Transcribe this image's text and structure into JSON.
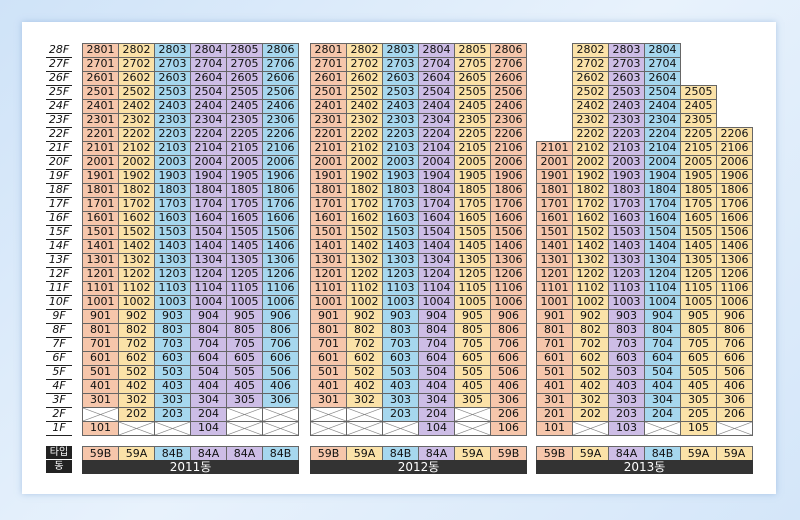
{
  "colors": {
    "59B": "#f6c6ab",
    "59A": "#fbe2a8",
    "84B": "#a6d7ee",
    "84A": "#cdbde6"
  },
  "legend": {
    "type_header": "타입",
    "building_header": "동"
  },
  "buildings": [
    {
      "name": "2011동",
      "lines": [
        {
          "line": "01",
          "type": "59B",
          "min": 1,
          "max": 28,
          "skip": [
            2
          ]
        },
        {
          "line": "02",
          "type": "59A",
          "min": 2,
          "max": 28,
          "skip": []
        },
        {
          "line": "03",
          "type": "84B",
          "min": 2,
          "max": 28,
          "skip": []
        },
        {
          "line": "04",
          "type": "84A",
          "min": 1,
          "max": 28,
          "skip": []
        },
        {
          "line": "05",
          "type": "84A",
          "min": 3,
          "max": 28,
          "skip": []
        },
        {
          "line": "06",
          "type": "84B",
          "min": 3,
          "max": 28,
          "skip": []
        }
      ]
    },
    {
      "name": "2012동",
      "lines": [
        {
          "line": "01",
          "type": "59B",
          "min": 3,
          "max": 28,
          "skip": []
        },
        {
          "line": "02",
          "type": "59A",
          "min": 3,
          "max": 28,
          "skip": []
        },
        {
          "line": "03",
          "type": "84B",
          "min": 2,
          "max": 28,
          "skip": []
        },
        {
          "line": "04",
          "type": "84A",
          "min": 1,
          "max": 28,
          "skip": []
        },
        {
          "line": "05",
          "type": "59A",
          "min": 3,
          "max": 28,
          "skip": []
        },
        {
          "line": "06",
          "type": "59B",
          "min": 1,
          "max": 28,
          "skip": []
        }
      ]
    },
    {
      "name": "2013동",
      "lines": [
        {
          "line": "01",
          "type": "59B",
          "min": 1,
          "max": 21,
          "skip": []
        },
        {
          "line": "02",
          "type": "59A",
          "min": 2,
          "max": 28,
          "skip": []
        },
        {
          "line": "03",
          "type": "84A",
          "min": 1,
          "max": 28,
          "skip": []
        },
        {
          "line": "04",
          "type": "84B",
          "min": 2,
          "max": 28,
          "skip": []
        },
        {
          "line": "05",
          "type": "59A",
          "min": 1,
          "max": 25,
          "skip": []
        },
        {
          "line": "06",
          "type": "59A",
          "min": 2,
          "max": 22,
          "skip": []
        }
      ]
    }
  ],
  "floors": [
    "28F",
    "27F",
    "26F",
    "25F",
    "24F",
    "23F",
    "22F",
    "21F",
    "20F",
    "19F",
    "18F",
    "17F",
    "16F",
    "15F",
    "14F",
    "13F",
    "12F",
    "11F",
    "10F",
    "9F",
    "8F",
    "7F",
    "6F",
    "5F",
    "4F",
    "3F",
    "2F",
    "1F"
  ]
}
